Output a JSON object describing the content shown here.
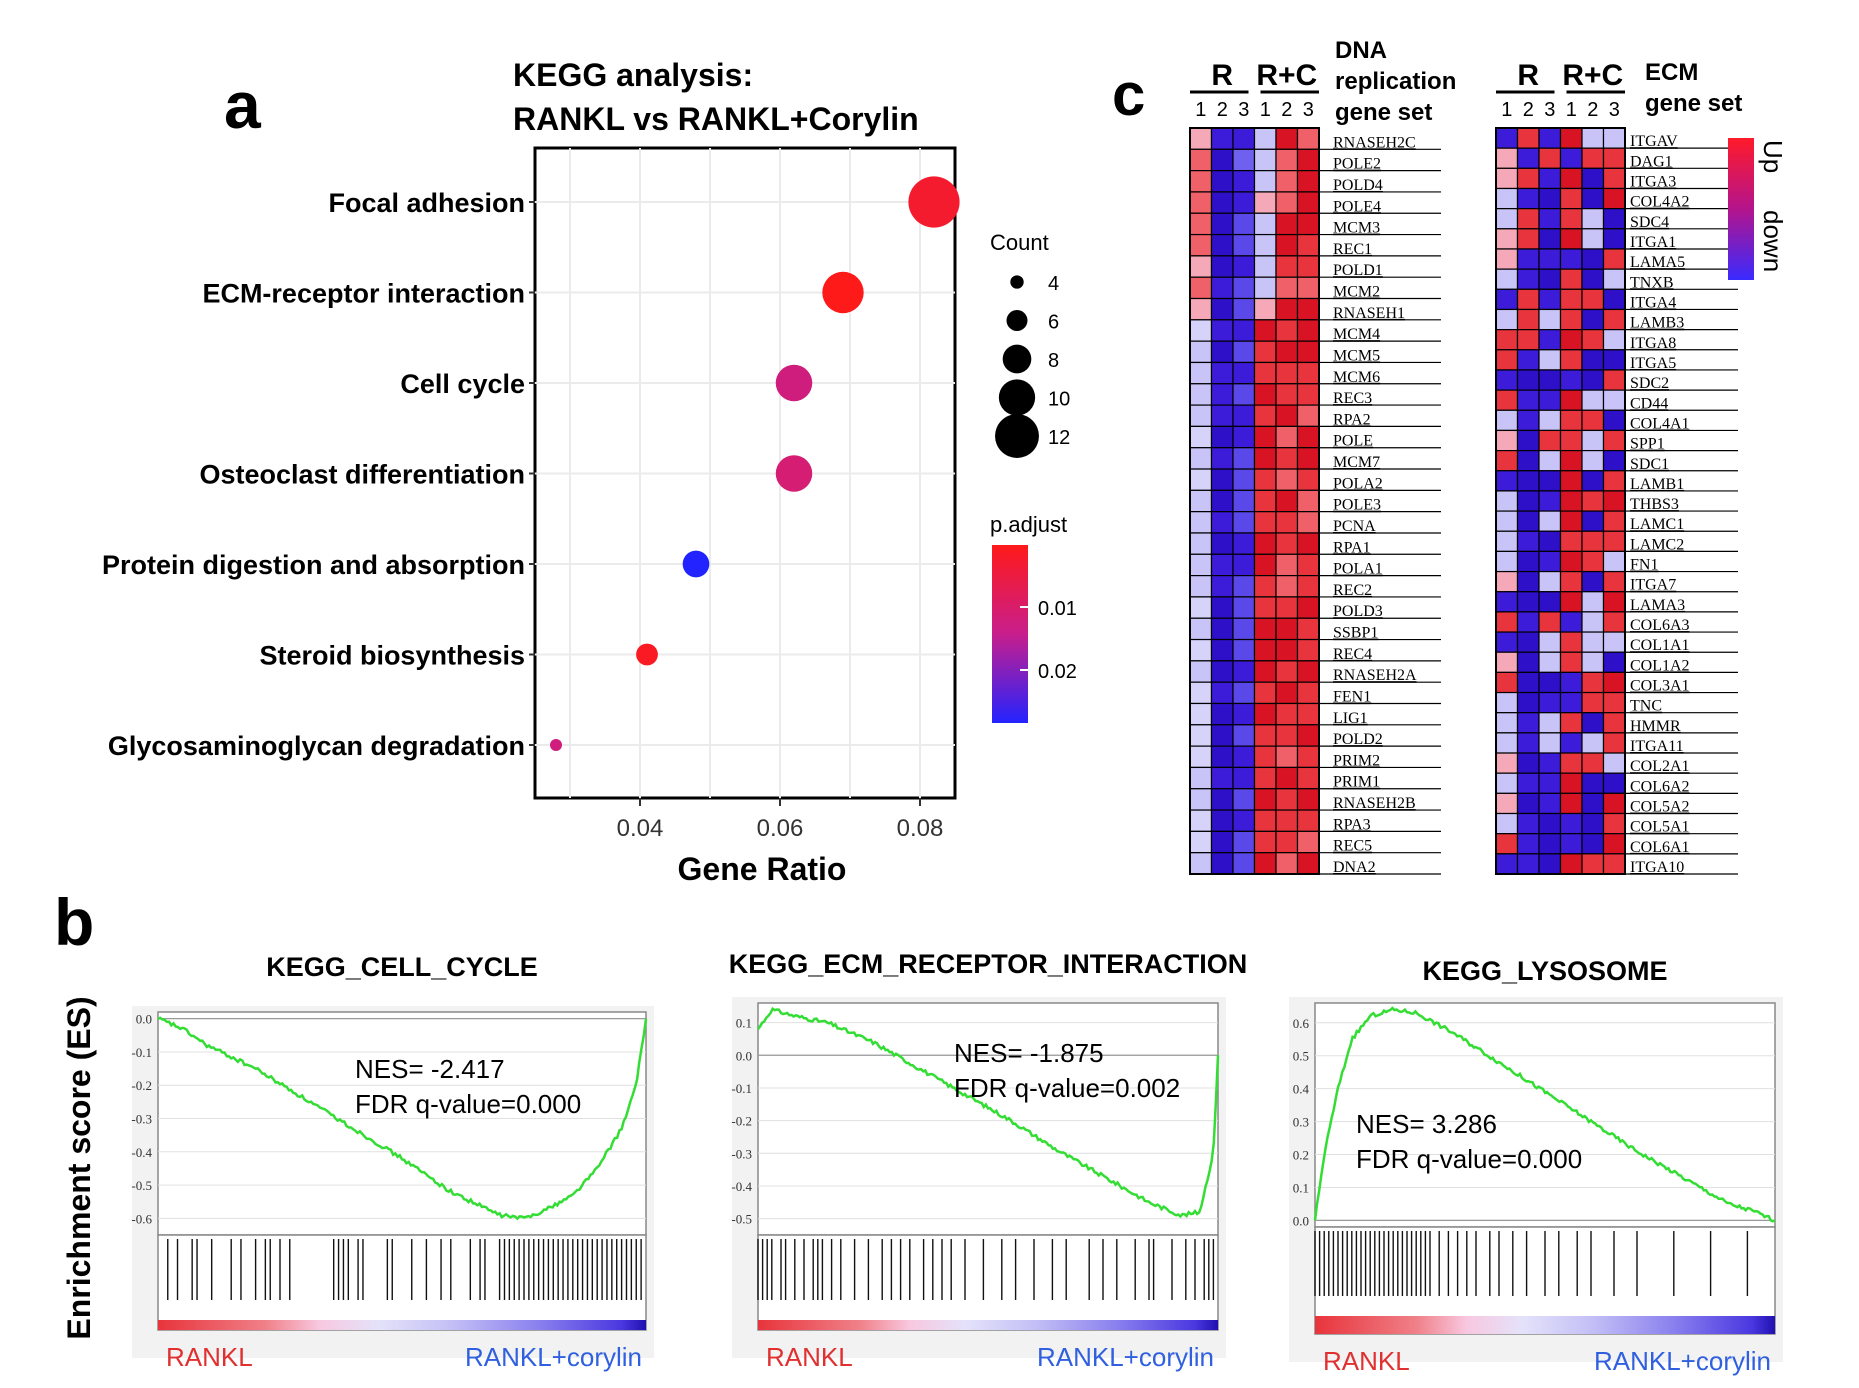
{
  "panels": {
    "a": "a",
    "b": "b",
    "c": "c"
  },
  "colors": {
    "red": "#ff1a1a",
    "magenta": "#c81e8c",
    "blue": "#2323ff",
    "green": "#33dd33",
    "ranklText": "#e03030",
    "corylinText": "#3060e0"
  },
  "chart_data": [
    {
      "id": "kegg-dotplot",
      "type": "scatter",
      "title": [
        "KEGG analysis:",
        "RANKL vs RANKL+Corylin"
      ],
      "xlabel": "Gene Ratio",
      "xticks": [
        0.04,
        0.06,
        0.08
      ],
      "xlim": [
        0.025,
        0.085
      ],
      "points": [
        {
          "term": "Focal adhesion",
          "gene_ratio": 0.082,
          "count": 12,
          "p_adjust": 0.004
        },
        {
          "term": "ECM-receptor interaction",
          "gene_ratio": 0.069,
          "count": 10,
          "p_adjust": 0.002
        },
        {
          "term": "Cell cycle",
          "gene_ratio": 0.062,
          "count": 9,
          "p_adjust": 0.012
        },
        {
          "term": "Osteoclast differentiation",
          "gene_ratio": 0.062,
          "count": 9,
          "p_adjust": 0.011
        },
        {
          "term": "Protein digestion and absorption",
          "gene_ratio": 0.048,
          "count": 7,
          "p_adjust": 0.025
        },
        {
          "term": "Steroid biosynthesis",
          "gene_ratio": 0.041,
          "count": 6,
          "p_adjust": 0.003
        },
        {
          "term": "Glycosaminoglycan degradation",
          "gene_ratio": 0.028,
          "count": 4,
          "p_adjust": 0.012
        }
      ],
      "legend_count": {
        "title": "Count",
        "values": [
          4,
          6,
          8,
          10,
          12
        ]
      },
      "legend_padj": {
        "title": "p.adjust",
        "ticks": [
          "0.01",
          "0.02"
        ]
      }
    },
    {
      "id": "gsea-cell-cycle",
      "type": "line",
      "title": "KEGG_CELL_CYCLE",
      "ylim": [
        -0.65,
        0.02
      ],
      "yticks": [
        "0.0",
        "-0.1",
        "-0.2",
        "-0.3",
        "-0.4",
        "-0.5",
        "-0.6"
      ],
      "ytick_values": [
        0,
        -0.1,
        -0.2,
        -0.3,
        -0.4,
        -0.5,
        -0.6
      ],
      "annotation": [
        "NES= -2.417",
        "FDR q-value=0.000"
      ],
      "es_curve": [
        [
          0,
          0
        ],
        [
          0.05,
          -0.03
        ],
        [
          0.1,
          -0.08
        ],
        [
          0.2,
          -0.15
        ],
        [
          0.3,
          -0.24
        ],
        [
          0.4,
          -0.33
        ],
        [
          0.5,
          -0.42
        ],
        [
          0.6,
          -0.52
        ],
        [
          0.7,
          -0.59
        ],
        [
          0.75,
          -0.6
        ],
        [
          0.8,
          -0.57
        ],
        [
          0.85,
          -0.53
        ],
        [
          0.9,
          -0.45
        ],
        [
          0.95,
          -0.33
        ],
        [
          0.98,
          -0.2
        ],
        [
          1.0,
          0.0
        ]
      ],
      "hits": [
        0.02,
        0.04,
        0.07,
        0.08,
        0.11,
        0.15,
        0.17,
        0.2,
        0.22,
        0.23,
        0.25,
        0.27,
        0.36,
        0.37,
        0.38,
        0.39,
        0.41,
        0.42,
        0.47,
        0.48,
        0.52,
        0.55,
        0.58,
        0.6,
        0.64,
        0.66,
        0.67,
        0.7,
        0.71,
        0.72,
        0.73,
        0.74,
        0.75,
        0.76,
        0.77,
        0.78,
        0.79,
        0.8,
        0.81,
        0.82,
        0.83,
        0.84,
        0.85,
        0.86,
        0.87,
        0.88,
        0.89,
        0.9,
        0.91,
        0.92,
        0.93,
        0.94,
        0.95,
        0.96,
        0.97,
        0.98,
        0.99
      ],
      "left_label": "RANKL",
      "right_label": "RANKL+corylin"
    },
    {
      "id": "gsea-ecm",
      "type": "line",
      "title": "KEGG_ECM_RECEPTOR_INTERACTION",
      "ylim": [
        -0.55,
        0.16
      ],
      "yticks": [
        "0.1",
        "0.0",
        "-0.1",
        "-0.2",
        "-0.3",
        "-0.4",
        "-0.5"
      ],
      "ytick_values": [
        0.1,
        0,
        -0.1,
        -0.2,
        -0.3,
        -0.4,
        -0.5
      ],
      "annotation": [
        "NES= -1.875",
        "FDR q-value=0.002"
      ],
      "es_curve": [
        [
          0,
          0.08
        ],
        [
          0.03,
          0.14
        ],
        [
          0.08,
          0.12
        ],
        [
          0.15,
          0.1
        ],
        [
          0.25,
          0.04
        ],
        [
          0.35,
          -0.04
        ],
        [
          0.45,
          -0.12
        ],
        [
          0.55,
          -0.2
        ],
        [
          0.65,
          -0.29
        ],
        [
          0.75,
          -0.37
        ],
        [
          0.85,
          -0.45
        ],
        [
          0.92,
          -0.49
        ],
        [
          0.96,
          -0.48
        ],
        [
          0.99,
          -0.3
        ],
        [
          1.0,
          0.0
        ]
      ],
      "hits": [
        0.0,
        0.01,
        0.02,
        0.03,
        0.05,
        0.06,
        0.08,
        0.1,
        0.12,
        0.13,
        0.14,
        0.16,
        0.18,
        0.21,
        0.24,
        0.27,
        0.29,
        0.31,
        0.33,
        0.36,
        0.38,
        0.4,
        0.42,
        0.45,
        0.49,
        0.53,
        0.56,
        0.6,
        0.64,
        0.67,
        0.72,
        0.75,
        0.78,
        0.82,
        0.85,
        0.86,
        0.9,
        0.93,
        0.95,
        0.97,
        0.98,
        0.99
      ],
      "left_label": "RANKL",
      "right_label": "RANKL+corylin"
    },
    {
      "id": "gsea-lysosome",
      "type": "line",
      "title": "KEGG_LYSOSOME",
      "ylim": [
        -0.02,
        0.66
      ],
      "yticks": [
        "0.6",
        "0.5",
        "0.4",
        "0.3",
        "0.2",
        "0.1",
        "0.0"
      ],
      "ytick_values": [
        0.6,
        0.5,
        0.4,
        0.3,
        0.2,
        0.1,
        0
      ],
      "annotation": [
        "NES= 3.286",
        "FDR q-value=0.000"
      ],
      "es_curve": [
        [
          0,
          0.0
        ],
        [
          0.02,
          0.2
        ],
        [
          0.05,
          0.4
        ],
        [
          0.08,
          0.55
        ],
        [
          0.12,
          0.62
        ],
        [
          0.17,
          0.64
        ],
        [
          0.22,
          0.63
        ],
        [
          0.3,
          0.57
        ],
        [
          0.4,
          0.48
        ],
        [
          0.5,
          0.39
        ],
        [
          0.6,
          0.3
        ],
        [
          0.7,
          0.21
        ],
        [
          0.8,
          0.13
        ],
        [
          0.9,
          0.05
        ],
        [
          0.95,
          0.03
        ],
        [
          1.0,
          0.0
        ]
      ],
      "hits": [
        0.0,
        0.01,
        0.02,
        0.03,
        0.04,
        0.05,
        0.06,
        0.07,
        0.08,
        0.09,
        0.1,
        0.11,
        0.12,
        0.13,
        0.14,
        0.15,
        0.16,
        0.17,
        0.18,
        0.19,
        0.2,
        0.21,
        0.22,
        0.23,
        0.24,
        0.25,
        0.27,
        0.29,
        0.31,
        0.33,
        0.35,
        0.38,
        0.4,
        0.43,
        0.46,
        0.5,
        0.53,
        0.57,
        0.6,
        0.65,
        0.7,
        0.78,
        0.86,
        0.94
      ],
      "left_label": "RANKL",
      "right_label": "RANKL+corylin"
    },
    {
      "id": "heatmap-dna",
      "type": "heatmap",
      "group_labels": [
        "R",
        "R+C"
      ],
      "replicates": [
        "1",
        "2",
        "3",
        "1",
        "2",
        "3"
      ],
      "title": [
        "DNA",
        "replication",
        "gene set"
      ],
      "genes": [
        "RNASEH2C",
        "POLE2",
        "POLD4",
        "POLE4",
        "MCM3",
        "REC1",
        "POLD1",
        "MCM2",
        "RNASEH1",
        "MCM4",
        "MCM5",
        "MCM6",
        "REC3",
        "RPA2",
        "POLE",
        "MCM7",
        "POLA2",
        "POLE3",
        "PCNA",
        "RPA1",
        "POLA1",
        "REC2",
        "POLD3",
        "SSBP1",
        "REC4",
        "RNASEH2A",
        "FEN1",
        "LIG1",
        "POLD2",
        "PRIM2",
        "PRIM1",
        "RNASEH2B",
        "RPA3",
        "REC5",
        "DNA2"
      ]
    },
    {
      "id": "heatmap-ecm",
      "type": "heatmap",
      "group_labels": [
        "R",
        "R+C"
      ],
      "replicates": [
        "1",
        "2",
        "3",
        "1",
        "2",
        "3"
      ],
      "title": [
        "ECM",
        "gene set"
      ],
      "genes": [
        "ITGAV",
        "DAG1",
        "ITGA3",
        "COL4A2",
        "SDC4",
        "ITGA1",
        "LAMA5",
        "TNXB",
        "ITGA4",
        "LAMB3",
        "ITGA8",
        "ITGA5",
        "SDC2",
        "CD44",
        "COL4A1",
        "SPP1",
        "SDC1",
        "LAMB1",
        "THBS3",
        "LAMC1",
        "LAMC2",
        "FN1",
        "ITGA7",
        "LAMA3",
        "COL6A3",
        "COL1A1",
        "COL1A2",
        "COL3A1",
        "TNC",
        "HMMR",
        "ITGA11",
        "COL2A1",
        "COL6A2",
        "COL5A2",
        "COL5A1",
        "COL6A1",
        "ITGA10"
      ],
      "colorbar": [
        "Up",
        "down"
      ]
    }
  ],
  "gsea_ylabel": "Enrichment score (ES)"
}
